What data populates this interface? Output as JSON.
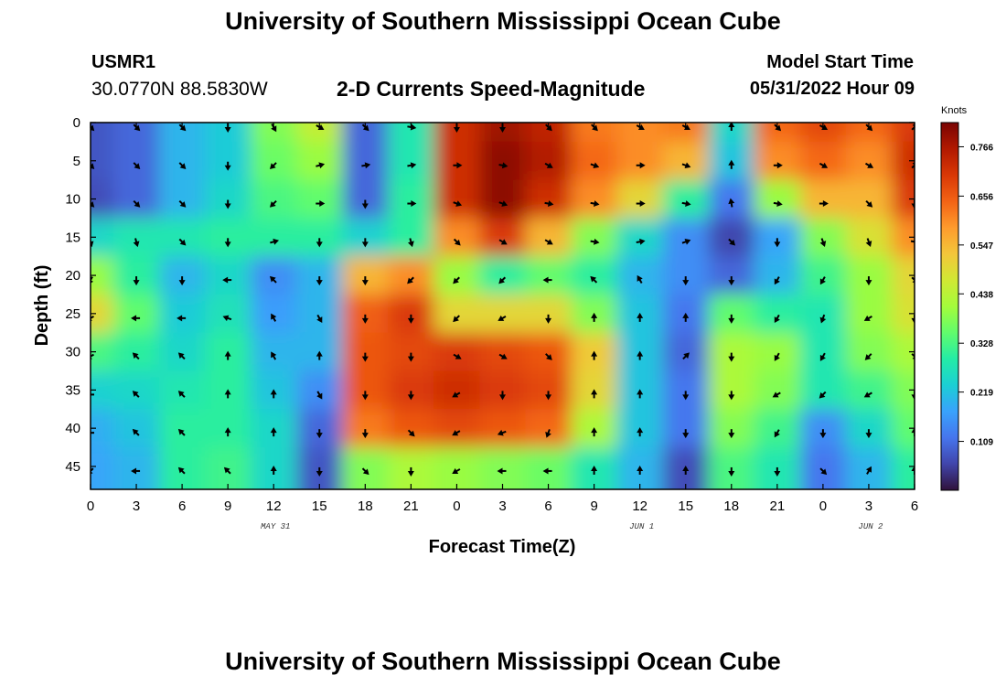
{
  "header": {
    "title": "University of Southern Mississippi Ocean Cube",
    "station_id": "USMR1",
    "coordinates": "30.0770N  88.5830W",
    "model_label": "Model Start Time",
    "model_date": "05/31/2022 Hour 09"
  },
  "footer": {
    "title": "University of Southern Mississippi Ocean Cube"
  },
  "chart_data": {
    "type": "heatmap",
    "title": "2-D Currents Speed-Magnitude",
    "xlabel": "Forecast Time(Z)",
    "ylabel": "Depth (ft)",
    "x_ticks": [
      "0",
      "3",
      "6",
      "9",
      "12",
      "15",
      "18",
      "21",
      "0",
      "3",
      "6",
      "9",
      "12",
      "15",
      "18",
      "21",
      "0",
      "3",
      "6"
    ],
    "y_ticks": [
      "0",
      "5",
      "10",
      "15",
      "20",
      "25",
      "30",
      "35",
      "40",
      "45"
    ],
    "y_range": [
      0,
      48
    ],
    "date_labels": [
      {
        "label": "MAY 31",
        "at_tick_index": 4
      },
      {
        "label": "JUN 1",
        "at_tick_index": 12
      },
      {
        "label": "JUN 2",
        "at_tick_index": 17
      }
    ],
    "colorbar": {
      "units": "Knots",
      "ticks": [
        "0.766",
        "0.656",
        "0.547",
        "0.438",
        "0.328",
        "0.219",
        "0.109"
      ],
      "range": [
        0.0,
        0.82
      ],
      "colors": [
        "#30123b",
        "#4145ab",
        "#4675ed",
        "#39a2fc",
        "#1bcfd4",
        "#24eca6",
        "#61fc6c",
        "#a4fc3b",
        "#d1e834",
        "#f3c63a",
        "#fe9b2d",
        "#f36315",
        "#d93806",
        "#b11901",
        "#7a0403"
      ]
    },
    "times_hours": [
      0,
      3,
      6,
      9,
      12,
      15,
      18,
      21,
      24,
      27,
      30,
      33,
      36,
      39,
      42,
      45,
      48,
      51,
      54
    ],
    "depths_ft": [
      0,
      5,
      10,
      15,
      20,
      25,
      30,
      35,
      40,
      45
    ],
    "speed_knots": [
      [
        0.08,
        0.1,
        0.2,
        0.23,
        0.38,
        0.45,
        0.1,
        0.28,
        0.72,
        0.78,
        0.74,
        0.62,
        0.6,
        0.62,
        0.25,
        0.64,
        0.68,
        0.64,
        0.7
      ],
      [
        0.08,
        0.1,
        0.2,
        0.23,
        0.36,
        0.4,
        0.1,
        0.28,
        0.72,
        0.8,
        0.76,
        0.64,
        0.6,
        0.55,
        0.22,
        0.6,
        0.64,
        0.6,
        0.72
      ],
      [
        0.07,
        0.1,
        0.2,
        0.25,
        0.33,
        0.35,
        0.1,
        0.3,
        0.72,
        0.8,
        0.72,
        0.6,
        0.5,
        0.3,
        0.12,
        0.4,
        0.55,
        0.55,
        0.7
      ],
      [
        0.25,
        0.28,
        0.28,
        0.3,
        0.3,
        0.3,
        0.24,
        0.3,
        0.6,
        0.7,
        0.55,
        0.38,
        0.25,
        0.15,
        0.06,
        0.18,
        0.38,
        0.48,
        0.6
      ],
      [
        0.4,
        0.3,
        0.2,
        0.25,
        0.15,
        0.2,
        0.55,
        0.6,
        0.4,
        0.3,
        0.35,
        0.3,
        0.2,
        0.15,
        0.1,
        0.2,
        0.32,
        0.4,
        0.5
      ],
      [
        0.5,
        0.35,
        0.23,
        0.27,
        0.17,
        0.2,
        0.65,
        0.7,
        0.5,
        0.5,
        0.5,
        0.38,
        0.22,
        0.12,
        0.35,
        0.3,
        0.28,
        0.4,
        0.48
      ],
      [
        0.33,
        0.3,
        0.25,
        0.3,
        0.2,
        0.2,
        0.66,
        0.68,
        0.7,
        0.68,
        0.66,
        0.52,
        0.22,
        0.1,
        0.42,
        0.4,
        0.28,
        0.38,
        0.42
      ],
      [
        0.24,
        0.25,
        0.28,
        0.3,
        0.22,
        0.15,
        0.66,
        0.7,
        0.72,
        0.7,
        0.68,
        0.5,
        0.22,
        0.12,
        0.42,
        0.38,
        0.28,
        0.32,
        0.38
      ],
      [
        0.19,
        0.22,
        0.3,
        0.3,
        0.25,
        0.1,
        0.62,
        0.66,
        0.68,
        0.66,
        0.64,
        0.42,
        0.22,
        0.12,
        0.38,
        0.32,
        0.15,
        0.25,
        0.35
      ],
      [
        0.18,
        0.2,
        0.3,
        0.32,
        0.25,
        0.08,
        0.38,
        0.42,
        0.4,
        0.38,
        0.36,
        0.28,
        0.2,
        0.07,
        0.33,
        0.28,
        0.12,
        0.2,
        0.3
      ]
    ],
    "direction_deg": [
      [
        135,
        135,
        135,
        180,
        150,
        120,
        135,
        100,
        180,
        180,
        135,
        135,
        120,
        120,
        0,
        135,
        120,
        135,
        45
      ],
      [
        135,
        135,
        135,
        180,
        225,
        75,
        80,
        80,
        90,
        100,
        120,
        110,
        90,
        110,
        0,
        90,
        120,
        120,
        45
      ],
      [
        135,
        135,
        135,
        180,
        225,
        90,
        180,
        90,
        110,
        110,
        100,
        100,
        90,
        100,
        350,
        100,
        90,
        135,
        180
      ],
      [
        165,
        165,
        135,
        180,
        75,
        180,
        180,
        165,
        135,
        120,
        120,
        100,
        80,
        70,
        135,
        180,
        160,
        160,
        100
      ],
      [
        210,
        180,
        180,
        270,
        315,
        180,
        180,
        225,
        225,
        225,
        270,
        315,
        330,
        180,
        180,
        210,
        210,
        180,
        135
      ],
      [
        240,
        270,
        270,
        290,
        330,
        150,
        180,
        180,
        225,
        240,
        180,
        0,
        0,
        0,
        180,
        210,
        200,
        240,
        180
      ],
      [
        240,
        315,
        315,
        0,
        330,
        0,
        180,
        180,
        120,
        120,
        135,
        0,
        0,
        45,
        180,
        210,
        210,
        225,
        135
      ],
      [
        270,
        315,
        315,
        0,
        0,
        150,
        180,
        180,
        240,
        180,
        180,
        0,
        0,
        180,
        180,
        240,
        225,
        240,
        180
      ],
      [
        270,
        315,
        315,
        0,
        0,
        180,
        180,
        135,
        240,
        250,
        200,
        0,
        0,
        180,
        180,
        210,
        180,
        180,
        0
      ],
      [
        225,
        270,
        315,
        315,
        0,
        180,
        135,
        180,
        240,
        270,
        270,
        0,
        0,
        0,
        180,
        180,
        135,
        30,
        0
      ]
    ]
  }
}
